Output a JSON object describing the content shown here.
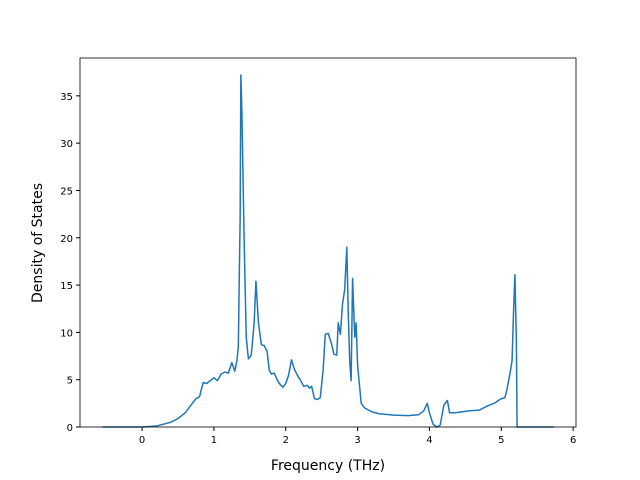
{
  "chart_data": {
    "type": "line",
    "xlabel": "Frequency (THz)",
    "ylabel": "Density of States",
    "xlim": [
      -0.864,
      6.04
    ],
    "ylim": [
      0,
      39
    ],
    "xticks": [
      0,
      1,
      2,
      3,
      4,
      5,
      6
    ],
    "yticks": [
      0,
      5,
      10,
      15,
      20,
      25,
      30,
      35
    ],
    "series": [
      {
        "color": "#1f77b4",
        "x": [
          -0.55,
          0,
          0.2,
          0.4,
          0.5,
          0.6,
          0.7,
          0.75,
          0.8,
          0.85,
          0.9,
          0.95,
          1.0,
          1.05,
          1.1,
          1.15,
          1.2,
          1.25,
          1.29,
          1.32,
          1.34,
          1.355,
          1.365,
          1.375,
          1.39,
          1.42,
          1.45,
          1.48,
          1.52,
          1.56,
          1.585,
          1.62,
          1.66,
          1.7,
          1.74,
          1.77,
          1.8,
          1.84,
          1.88,
          1.92,
          1.96,
          2.0,
          2.04,
          2.08,
          2.12,
          2.16,
          2.2,
          2.25,
          2.3,
          2.33,
          2.36,
          2.4,
          2.44,
          2.48,
          2.52,
          2.55,
          2.59,
          2.63,
          2.67,
          2.71,
          2.73,
          2.76,
          2.79,
          2.82,
          2.85,
          2.87,
          2.89,
          2.91,
          2.93,
          2.96,
          2.98,
          3.0,
          3.05,
          3.1,
          3.2,
          3.3,
          3.5,
          3.7,
          3.85,
          3.92,
          3.97,
          4.0,
          4.05,
          4.1,
          4.15,
          4.2,
          4.25,
          4.28,
          4.35,
          4.45,
          4.55,
          4.7,
          4.8,
          4.9,
          5.0,
          5.05,
          5.08,
          5.12,
          5.15,
          5.17,
          5.19,
          5.21,
          5.22,
          5.4,
          5.73
        ],
        "values": [
          0,
          0,
          0.1,
          0.5,
          0.9,
          1.5,
          2.5,
          3.0,
          3.2,
          4.7,
          4.6,
          4.9,
          5.2,
          4.9,
          5.6,
          5.8,
          5.7,
          6.8,
          5.9,
          7.0,
          8.5,
          17,
          22,
          37.2,
          33,
          20,
          9.5,
          7.2,
          7.6,
          11,
          15.4,
          11,
          8.7,
          8.6,
          8.0,
          6.0,
          5.6,
          5.7,
          5.0,
          4.5,
          4.2,
          4.6,
          5.5,
          7.1,
          6.1,
          5.5,
          5.0,
          4.3,
          4.4,
          4.1,
          4.3,
          3.0,
          2.9,
          3.1,
          6.0,
          9.8,
          9.9,
          9.0,
          7.7,
          7.6,
          11,
          9.8,
          13,
          14.5,
          19,
          12,
          7.0,
          4.9,
          15.7,
          9.5,
          11,
          6.5,
          2.5,
          2.0,
          1.6,
          1.4,
          1.25,
          1.2,
          1.3,
          1.7,
          2.5,
          1.5,
          0.3,
          0,
          0.2,
          2.3,
          2.8,
          1.5,
          1.5,
          1.6,
          1.7,
          1.8,
          2.2,
          2.5,
          3.0,
          3.1,
          4.0,
          5.6,
          7.0,
          12,
          16.1,
          9,
          0,
          0,
          0
        ]
      }
    ]
  }
}
